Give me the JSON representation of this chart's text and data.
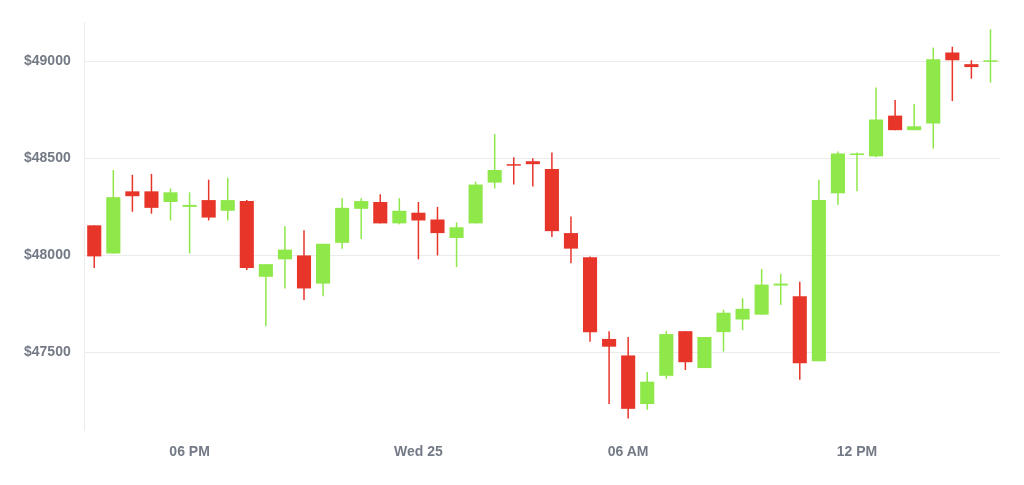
{
  "chart_data": {
    "type": "candlestick",
    "categories": [
      null,
      null,
      null,
      null,
      null,
      "06 PM",
      null,
      null,
      null,
      null,
      null,
      null,
      null,
      null,
      null,
      null,
      null,
      "Wed 25",
      null,
      null,
      null,
      null,
      null,
      null,
      null,
      null,
      null,
      null,
      "06 AM",
      null,
      null,
      null,
      null,
      null,
      null,
      null,
      null,
      null,
      null,
      null,
      "12 PM",
      null,
      null,
      null,
      null,
      null,
      null,
      null
    ],
    "ohlc": [
      [
        48155,
        48155,
        47935,
        47995
      ],
      [
        48010,
        48440,
        48010,
        48300
      ],
      [
        48330,
        48415,
        48225,
        48305
      ],
      [
        48330,
        48420,
        48215,
        48245
      ],
      [
        48275,
        48345,
        48180,
        48325
      ],
      [
        48250,
        48325,
        48010,
        48260
      ],
      [
        48285,
        48390,
        48180,
        48195
      ],
      [
        48230,
        48400,
        48180,
        48285
      ],
      [
        48280,
        48285,
        47925,
        47935
      ],
      [
        47890,
        47955,
        47635,
        47955
      ],
      [
        47980,
        48150,
        47830,
        48030
      ],
      [
        48000,
        48130,
        47770,
        47830
      ],
      [
        47855,
        48060,
        47790,
        48060
      ],
      [
        48065,
        48295,
        48035,
        48245
      ],
      [
        48240,
        48295,
        48085,
        48280
      ],
      [
        48275,
        48315,
        48165,
        48165
      ],
      [
        48165,
        48295,
        48160,
        48230
      ],
      [
        48220,
        48275,
        47980,
        48180
      ],
      [
        48185,
        48250,
        48000,
        48115
      ],
      [
        48090,
        48170,
        47940,
        48145
      ],
      [
        48165,
        48380,
        48165,
        48365
      ],
      [
        48375,
        48625,
        48345,
        48440
      ],
      [
        48470,
        48505,
        48365,
        48465
      ],
      [
        48485,
        48500,
        48355,
        48470
      ],
      [
        48445,
        48530,
        48095,
        48125
      ],
      [
        48115,
        48200,
        47960,
        48035
      ],
      [
        47990,
        47995,
        47555,
        47605
      ],
      [
        47570,
        47610,
        47235,
        47530
      ],
      [
        47485,
        47580,
        47160,
        47210
      ],
      [
        47235,
        47400,
        47205,
        47350
      ],
      [
        47380,
        47610,
        47365,
        47595
      ],
      [
        47610,
        47610,
        47410,
        47450
      ],
      [
        47420,
        47580,
        47420,
        47580
      ],
      [
        47605,
        47720,
        47505,
        47705
      ],
      [
        47670,
        47780,
        47615,
        47725
      ],
      [
        47695,
        47930,
        47695,
        47850
      ],
      [
        47845,
        47905,
        47745,
        47855
      ],
      [
        47790,
        47865,
        47360,
        47445
      ],
      [
        47455,
        48390,
        47455,
        48285
      ],
      [
        48320,
        48535,
        48260,
        48525
      ],
      [
        48520,
        48530,
        48330,
        48525
      ],
      [
        48510,
        48865,
        48505,
        48700
      ],
      [
        48720,
        48800,
        48645,
        48645
      ],
      [
        48645,
        48780,
        48645,
        48665
      ],
      [
        48680,
        49070,
        48550,
        49010
      ],
      [
        49045,
        49075,
        48795,
        49005
      ],
      [
        48985,
        49005,
        48910,
        48970
      ],
      [
        49000,
        49165,
        48890,
        49005
      ]
    ],
    "colors": [
      "#e8352a",
      "#8fe84a",
      "#e8352a",
      "#e8352a",
      "#8fe84a",
      "#8fe84a",
      "#e8352a",
      "#8fe84a",
      "#e8352a",
      "#8fe84a",
      "#8fe84a",
      "#e8352a",
      "#8fe84a",
      "#8fe84a",
      "#8fe84a",
      "#e8352a",
      "#8fe84a",
      "#e8352a",
      "#e8352a",
      "#8fe84a",
      "#8fe84a",
      "#8fe84a",
      "#e8352a",
      "#e8352a",
      "#e8352a",
      "#e8352a",
      "#e8352a",
      "#e8352a",
      "#e8352a",
      "#8fe84a",
      "#8fe84a",
      "#e8352a",
      "#8fe84a",
      "#8fe84a",
      "#8fe84a",
      "#8fe84a",
      "#8fe84a",
      "#e8352a",
      "#8fe84a",
      "#8fe84a",
      "#8fe84a",
      "#8fe84a",
      "#e8352a",
      "#8fe84a",
      "#8fe84a",
      "#e8352a",
      "#e8352a",
      "#8fe84a"
    ],
    "ylim": [
      47100,
      49200
    ],
    "yticks": [
      {
        "value": 47500,
        "label": "$47500"
      },
      {
        "value": 48000,
        "label": "$48000"
      },
      {
        "value": 48500,
        "label": "$48500"
      },
      {
        "value": 49000,
        "label": "$49000"
      }
    ],
    "grid": "y"
  }
}
